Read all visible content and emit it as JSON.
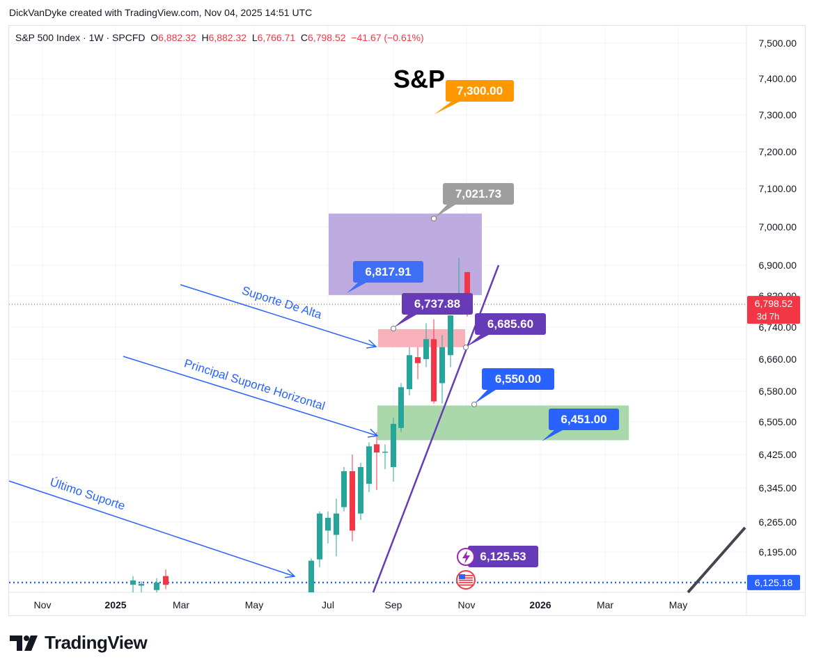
{
  "header": {
    "attribution": "DickVanDyke created with TradingView.com, Nov 04, 2025 14:51 UTC"
  },
  "legend": {
    "symbol": "S&P 500 Index · 1W · SPCFD",
    "o_label": "O",
    "o_value": "6,882.32",
    "h_label": "H",
    "h_value": "6,882.32",
    "l_label": "L",
    "l_value": "6,766.71",
    "c_label": "C",
    "c_value": "6,798.52",
    "change": "−41.67 (−0.61%)"
  },
  "brand": {
    "name": "TradingView"
  },
  "colors": {
    "up": "#26a69a",
    "down": "#f23645",
    "grid": "#f0f3fa",
    "axis_text": "#131722",
    "trendline": "#673ab7",
    "arrow": "#2962ff",
    "dotted_support": "#2962ff"
  },
  "chart_data": {
    "type": "candlestick",
    "title": "S&P",
    "interval": "1W",
    "ylim": [
      6090,
      7540
    ],
    "price_axis_labels": [
      "7,500.00",
      "7,400.00",
      "7,300.00",
      "7,200.00",
      "7,100.00",
      "7,000.00",
      "6,900.00",
      "6,820.00",
      "6,740.00",
      "6,660.00",
      "6,580.00",
      "6,505.00",
      "6,425.00",
      "6,345.00",
      "6,265.00",
      "6,195.00"
    ],
    "time_axis_labels": [
      "Nov",
      "2025",
      "Mar",
      "May",
      "Jul",
      "Sep",
      "Nov",
      "2026",
      "Mar",
      "May"
    ],
    "current_price": {
      "value": 6798.52,
      "label": "6,798.52",
      "countdown": "3d 7h"
    },
    "support_level": {
      "value": 6125.18,
      "label": "6,125.18"
    },
    "candles": [
      {
        "o": 6120,
        "h": 6140,
        "l": 6100,
        "c": 6130
      },
      {
        "o": 6118,
        "h": 6128,
        "l": 6100,
        "c": 6122
      },
      {
        "o": 6108,
        "h": 6135,
        "l": 6100,
        "c": 6125
      },
      {
        "o": 6140,
        "h": 6155,
        "l": 6110,
        "c": 6120
      },
      {
        "o": 6090,
        "h": 6180,
        "l": 6090,
        "c": 6175
      },
      {
        "o": 6178,
        "h": 6290,
        "l": 6160,
        "c": 6285
      },
      {
        "o": 6245,
        "h": 6290,
        "l": 6215,
        "c": 6275
      },
      {
        "o": 6235,
        "h": 6320,
        "l": 6185,
        "c": 6285
      },
      {
        "o": 6300,
        "h": 6395,
        "l": 6290,
        "c": 6385
      },
      {
        "o": 6385,
        "h": 6425,
        "l": 6220,
        "c": 6245
      },
      {
        "o": 6285,
        "h": 6405,
        "l": 6270,
        "c": 6395
      },
      {
        "o": 6355,
        "h": 6455,
        "l": 6335,
        "c": 6445
      },
      {
        "o": 6450,
        "h": 6480,
        "l": 6340,
        "c": 6430
      },
      {
        "o": 6430,
        "h": 6450,
        "l": 6390,
        "c": 6432
      },
      {
        "o": 6395,
        "h": 6515,
        "l": 6360,
        "c": 6500
      },
      {
        "o": 6490,
        "h": 6600,
        "l": 6480,
        "c": 6590
      },
      {
        "o": 6585,
        "h": 6690,
        "l": 6570,
        "c": 6670
      },
      {
        "o": 6665,
        "h": 6690,
        "l": 6610,
        "c": 6650
      },
      {
        "o": 6660,
        "h": 6750,
        "l": 6640,
        "c": 6710
      },
      {
        "o": 6710,
        "h": 6760,
        "l": 6550,
        "c": 6555
      },
      {
        "o": 6600,
        "h": 6720,
        "l": 6550,
        "c": 6690
      },
      {
        "o": 6670,
        "h": 6770,
        "l": 6640,
        "c": 6770
      },
      {
        "o": 6790,
        "h": 6920,
        "l": 6775,
        "c": 6790
      },
      {
        "o": 6882,
        "h": 6882,
        "l": 6767,
        "c": 6799
      }
    ],
    "zones": [
      {
        "name": "resistance-zone",
        "from": 6822,
        "to": 7035
      },
      {
        "name": "suporte-de-alta-zone",
        "from": 6690,
        "to": 6735
      },
      {
        "name": "horizontal-support-zone",
        "from": 6460,
        "to": 6545
      }
    ],
    "price_labels": [
      {
        "name": "target-label",
        "text": "7,300.00"
      },
      {
        "name": "high-target-label",
        "text": "7,021.73"
      },
      {
        "name": "zone-top-label",
        "text": "6,817.91"
      },
      {
        "name": "alta-label",
        "text": "6,737.88"
      },
      {
        "name": "trendline-label",
        "text": "6,685.60"
      },
      {
        "name": "support-label",
        "text": "6,550.00"
      },
      {
        "name": "support-bottom-label",
        "text": "6,451.00"
      },
      {
        "name": "event-label",
        "text": "6,125.53"
      }
    ],
    "annotations": [
      "Suporte De Alta",
      "Principal Suporte Horizontal",
      "Último Suporte"
    ]
  }
}
